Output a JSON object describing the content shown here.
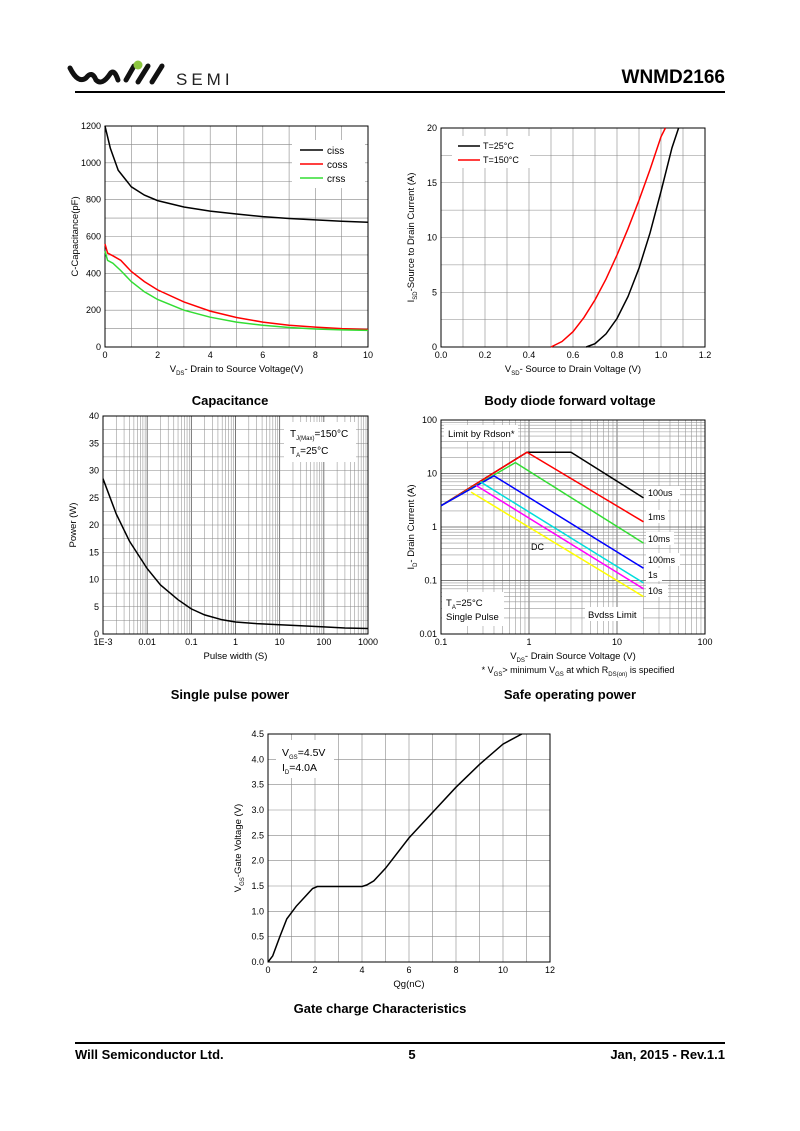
{
  "header": {
    "company_logo_text": "SEMI",
    "part_number": "WNMD2166"
  },
  "footer": {
    "company": "Will Semiconductor Ltd.",
    "page": "5",
    "date_rev": "Jan, 2015 - Rev.1.1"
  },
  "captions": {
    "capacitance": "Capacitance",
    "body_diode": "Body diode forward voltage",
    "single_pulse": "Single pulse power",
    "soa": "Safe operating power",
    "gate_charge": "Gate charge Characteristics"
  },
  "chart_data": [
    {
      "id": "capacitance",
      "type": "line",
      "xlabel": "V_DS- Drain to Source Voltage(V)",
      "ylabel": "C-Capacitance(pF)",
      "xlim": [
        0,
        10
      ],
      "ylim": [
        0,
        1200
      ],
      "xticks": [
        "0",
        "2",
        "4",
        "6",
        "8",
        "10"
      ],
      "yticks": [
        "0",
        "200",
        "400",
        "600",
        "800",
        "1000",
        "1200"
      ],
      "grid": true,
      "legend": "top-right",
      "series": [
        {
          "name": "ciss",
          "color": "#000000",
          "x": [
            0,
            0.2,
            0.5,
            1,
            1.5,
            2,
            3,
            4,
            5,
            6,
            7,
            8,
            9,
            10
          ],
          "y": [
            1200,
            1080,
            960,
            870,
            825,
            795,
            760,
            738,
            722,
            708,
            698,
            690,
            683,
            677
          ]
        },
        {
          "name": "coss",
          "color": "#ff0000",
          "x": [
            0,
            0.1,
            0.3,
            0.6,
            1,
            1.5,
            2,
            3,
            4,
            5,
            6,
            7,
            8,
            9,
            10
          ],
          "y": [
            560,
            510,
            495,
            470,
            410,
            355,
            310,
            245,
            195,
            160,
            135,
            118,
            108,
            100,
            95
          ]
        },
        {
          "name": "crss",
          "color": "#33dd33",
          "x": [
            0,
            0.1,
            0.3,
            0.6,
            1,
            1.5,
            2,
            3,
            4,
            5,
            6,
            7,
            8,
            9,
            10
          ],
          "y": [
            520,
            470,
            455,
            415,
            355,
            300,
            258,
            200,
            162,
            135,
            118,
            106,
            98,
            93,
            90
          ]
        }
      ]
    },
    {
      "id": "body_diode",
      "type": "line",
      "xlabel": "V_SD- Source to Drain Voltage (V)",
      "ylabel": "I_SD-Source to Drain Current (A)",
      "xlim": [
        0,
        1.2
      ],
      "ylim": [
        0,
        20
      ],
      "xticks": [
        "0.0",
        "0.2",
        "0.4",
        "0.6",
        "0.8",
        "1.0",
        "1.2"
      ],
      "yticks": [
        "0",
        "5",
        "10",
        "15",
        "20"
      ],
      "grid": true,
      "legend": "top-left",
      "series": [
        {
          "name": "T=25°C",
          "color": "#000000",
          "x": [
            0.66,
            0.7,
            0.75,
            0.8,
            0.85,
            0.9,
            0.95,
            1.0,
            1.05,
            1.08
          ],
          "y": [
            0,
            0.3,
            1.2,
            2.6,
            4.6,
            7.2,
            10.4,
            14.2,
            18.2,
            20
          ]
        },
        {
          "name": "T=150°C",
          "color": "#ff0000",
          "x": [
            0.5,
            0.55,
            0.6,
            0.65,
            0.7,
            0.75,
            0.8,
            0.85,
            0.9,
            0.95,
            1.0,
            1.02
          ],
          "y": [
            0,
            0.5,
            1.4,
            2.7,
            4.3,
            6.2,
            8.4,
            10.8,
            13.4,
            16.2,
            19.2,
            20
          ]
        }
      ]
    },
    {
      "id": "single_pulse",
      "type": "line",
      "xlabel": "Pulse width (S)",
      "ylabel": "Power (W)",
      "xscale": "log",
      "xlim": [
        0.001,
        1000
      ],
      "ylim": [
        0,
        40
      ],
      "xticks": [
        "1E-3",
        "0.01",
        "0.1",
        "1",
        "10",
        "100",
        "1000"
      ],
      "yticks": [
        "0",
        "5",
        "10",
        "15",
        "20",
        "25",
        "30",
        "35",
        "40"
      ],
      "grid": true,
      "annotations": [
        "T_J(Max)=150°C",
        "T_A=25°C"
      ],
      "series": [
        {
          "name": "",
          "color": "#000000",
          "x": [
            0.001,
            0.002,
            0.004,
            0.01,
            0.02,
            0.05,
            0.1,
            0.2,
            0.5,
            1,
            3,
            10,
            30,
            100,
            300,
            1000
          ],
          "y": [
            28.5,
            22,
            17,
            12,
            9,
            6.3,
            4.6,
            3.5,
            2.6,
            2.2,
            1.9,
            1.7,
            1.5,
            1.3,
            1.1,
            1.0
          ]
        }
      ]
    },
    {
      "id": "soa",
      "type": "line",
      "xlabel": "V_DS- Drain Source Voltage (V)",
      "ylabel": "I_D- Drain Current (A)",
      "xscale": "log",
      "yscale": "log",
      "xlim": [
        0.1,
        100
      ],
      "ylim": [
        0.01,
        100
      ],
      "xticks": [
        "0.1",
        "1",
        "10",
        "100"
      ],
      "yticks": [
        "0.01",
        "0.1",
        "1",
        "10",
        "100"
      ],
      "grid": true,
      "annotations": [
        "Limit by Rdson*",
        "T_A=25°C",
        "Single Pulse",
        "Bvdss Limit",
        "DC"
      ],
      "footnote": "* V_GS> minimum V_GS at which R_DS(on) is specified",
      "series": [
        {
          "name": "100us",
          "color": "#000000",
          "x": [
            0.1,
            0.95,
            3,
            20
          ],
          "y": [
            2.5,
            25,
            25,
            3.5
          ]
        },
        {
          "name": "1ms",
          "color": "#ff0000",
          "x": [
            0.1,
            0.95,
            20
          ],
          "y": [
            2.5,
            25,
            1.25
          ]
        },
        {
          "name": "10ms",
          "color": "#33dd33",
          "x": [
            0.1,
            0.7,
            20
          ],
          "y": [
            2.5,
            16,
            0.5
          ]
        },
        {
          "name": "100ms",
          "color": "#0000ff",
          "x": [
            0.1,
            0.4,
            20
          ],
          "y": [
            2.5,
            9,
            0.17
          ]
        },
        {
          "name": "1s",
          "color": "#00dddd",
          "x": [
            0.28,
            20
          ],
          "y": [
            7,
            0.09
          ]
        },
        {
          "name": "10s",
          "color": "#ff00ff",
          "x": [
            0.25,
            20
          ],
          "y": [
            6,
            0.07
          ]
        },
        {
          "name": "DC",
          "color": "#ffff00",
          "x": [
            0.22,
            20
          ],
          "y": [
            4.5,
            0.05
          ]
        }
      ]
    },
    {
      "id": "gate_charge",
      "type": "line",
      "xlabel": "Qg(nC)",
      "ylabel": "V_GS-Gate Voltage (V)",
      "xlim": [
        0,
        12
      ],
      "ylim": [
        0,
        4.5
      ],
      "xticks": [
        "0",
        "2",
        "4",
        "6",
        "8",
        "10",
        "12"
      ],
      "yticks": [
        "0.0",
        "0.5",
        "1.0",
        "1.5",
        "2.0",
        "2.5",
        "3.0",
        "3.5",
        "4.0",
        "4.5"
      ],
      "grid": true,
      "annotations": [
        "V_GS=4.5V",
        "I_D=4.0A"
      ],
      "series": [
        {
          "name": "",
          "color": "#000000",
          "x": [
            0,
            0.2,
            0.5,
            0.8,
            1.2,
            1.6,
            1.9,
            2.1,
            2.5,
            3,
            3.5,
            4,
            4.2,
            4.5,
            5,
            6,
            7,
            8,
            9,
            10,
            10.8
          ],
          "y": [
            0,
            0.12,
            0.5,
            0.85,
            1.1,
            1.3,
            1.45,
            1.49,
            1.49,
            1.49,
            1.49,
            1.49,
            1.52,
            1.6,
            1.85,
            2.45,
            2.95,
            3.45,
            3.9,
            4.3,
            4.5
          ]
        }
      ]
    }
  ]
}
